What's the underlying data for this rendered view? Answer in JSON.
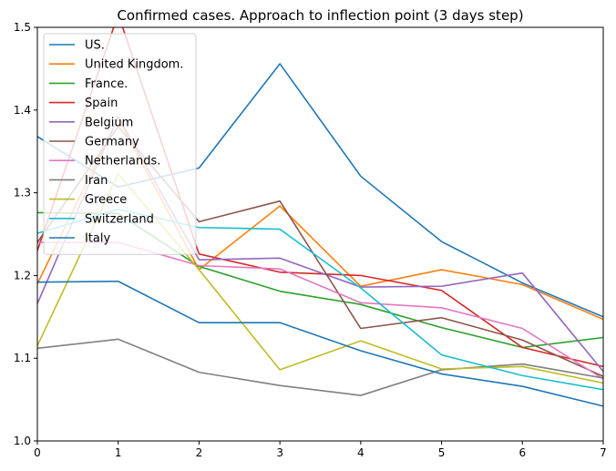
{
  "chart_data": {
    "type": "line",
    "title": "Confirmed cases. Approach to inflection point (3 days step)",
    "xlabel": "",
    "ylabel": "",
    "x": [
      0,
      1,
      2,
      3,
      4,
      5,
      6,
      7
    ],
    "xlim": [
      0,
      7
    ],
    "ylim": [
      1.0,
      1.5
    ],
    "x_ticks": [
      "0",
      "1",
      "2",
      "3",
      "4",
      "5",
      "6",
      "7"
    ],
    "y_ticks": [
      "1.0",
      "1.1",
      "1.2",
      "1.3",
      "1.4",
      "1.5"
    ],
    "grid": false,
    "legend_position": "upper-left",
    "series": [
      {
        "name": "US.",
        "color": "#1f77b4",
        "values": [
          1.368,
          1.307,
          1.33,
          1.456,
          1.32,
          1.241,
          1.191,
          1.15
        ]
      },
      {
        "name": "United Kingdom.",
        "color": "#ff7f0e",
        "values": [
          1.19,
          1.39,
          1.207,
          1.284,
          1.187,
          1.207,
          1.189,
          1.147
        ]
      },
      {
        "name": "France.",
        "color": "#2ca02c",
        "values": [
          1.276,
          1.275,
          1.211,
          1.181,
          1.165,
          1.137,
          1.113,
          1.125
        ]
      },
      {
        "name": "Spain",
        "color": "#d62728",
        "values": [
          1.23,
          1.516,
          1.226,
          1.204,
          1.2,
          1.182,
          1.113,
          1.09
        ]
      },
      {
        "name": "Belgium",
        "color": "#9467bd",
        "values": [
          1.166,
          1.392,
          1.219,
          1.221,
          1.186,
          1.187,
          1.203,
          1.084
        ]
      },
      {
        "name": "Germany",
        "color": "#8c564b",
        "values": [
          1.24,
          1.38,
          1.265,
          1.29,
          1.136,
          1.149,
          1.122,
          1.078
        ]
      },
      {
        "name": "Netherlands.",
        "color": "#e377c2",
        "values": [
          1.24,
          1.24,
          1.212,
          1.208,
          1.167,
          1.161,
          1.136,
          1.075
        ]
      },
      {
        "name": "Iran",
        "color": "#7f7f7f",
        "values": [
          1.112,
          1.123,
          1.083,
          1.067,
          1.055,
          1.086,
          1.093,
          1.076
        ]
      },
      {
        "name": "Greece",
        "color": "#bcbd22",
        "values": [
          1.115,
          1.323,
          1.207,
          1.086,
          1.121,
          1.087,
          1.09,
          1.07
        ]
      },
      {
        "name": "Switzerland",
        "color": "#17becf",
        "values": [
          1.251,
          1.28,
          1.258,
          1.256,
          1.185,
          1.104,
          1.079,
          1.062
        ]
      },
      {
        "name": "Italy",
        "color": "#1f77b4",
        "values": [
          1.192,
          1.193,
          1.143,
          1.143,
          1.109,
          1.081,
          1.066,
          1.042
        ]
      }
    ]
  }
}
